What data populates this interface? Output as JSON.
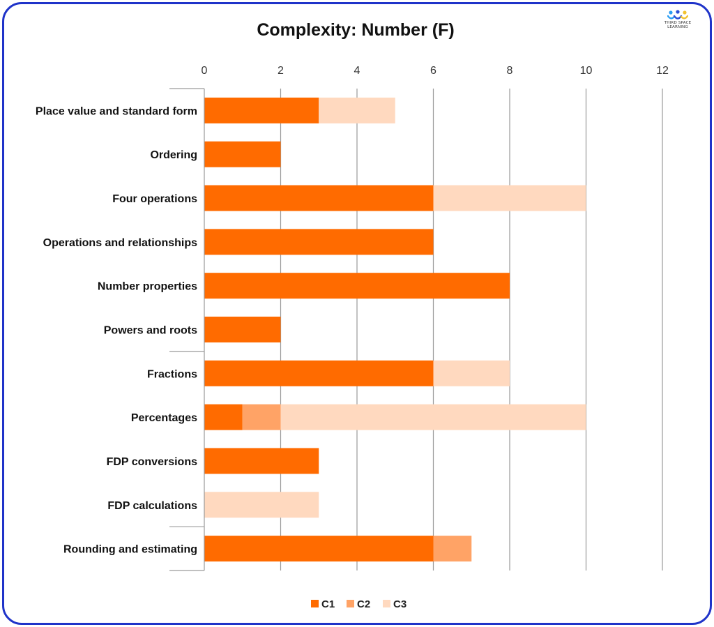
{
  "logo": {
    "line1": "THIRD SPACE",
    "line2": "LEARNING"
  },
  "chart_data": {
    "type": "bar",
    "orientation": "horizontal",
    "stacked": true,
    "title": "Complexity: Number (F)",
    "xlim": [
      0,
      12
    ],
    "xticks": [
      "0",
      "2",
      "4",
      "6",
      "8",
      "10",
      "12"
    ],
    "categories": [
      "Place value and standard form",
      "Ordering",
      "Four operations",
      "Operations and relationships",
      "Number properties",
      "Powers and roots",
      "Fractions",
      "Percentages",
      "FDP conversions",
      "FDP calculations",
      "Rounding and estimating"
    ],
    "series": [
      {
        "name": "C1",
        "color": "#ff6b00",
        "values": [
          3,
          2,
          6,
          6,
          8,
          2,
          6,
          1,
          3,
          0,
          6
        ]
      },
      {
        "name": "C2",
        "color": "#ffa366",
        "values": [
          0,
          0,
          0,
          0,
          0,
          0,
          0,
          1,
          0,
          0,
          1
        ]
      },
      {
        "name": "C3",
        "color": "#ffd9bf",
        "values": [
          2,
          0,
          4,
          0,
          0,
          0,
          2,
          8,
          0,
          3,
          0
        ]
      }
    ],
    "grid": "vertical",
    "legend": "bottom"
  }
}
